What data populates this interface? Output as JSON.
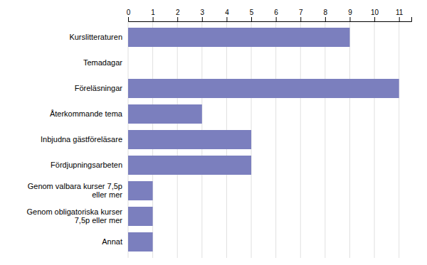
{
  "chart_data": {
    "type": "bar",
    "orientation": "horizontal",
    "categories": [
      "Annat",
      "Genom obligatoriska kurser\n7,5p eller mer",
      "Genom valbara kurser 7,5p\neller mer",
      "Fördjupningsarbeten",
      "Inbjudna gästföreläsare",
      "Återkommande tema",
      "Föreläsningar",
      "Temadagar",
      "Kurslitteraturen"
    ],
    "values": [
      1,
      1,
      1,
      5,
      5,
      3,
      11,
      0,
      9
    ],
    "color": "#7b7fbe",
    "xlim": [
      0,
      11.5
    ],
    "xticks": [
      0,
      1,
      2,
      3,
      4,
      5,
      6,
      7,
      8,
      9,
      10,
      11
    ],
    "grid": true
  }
}
